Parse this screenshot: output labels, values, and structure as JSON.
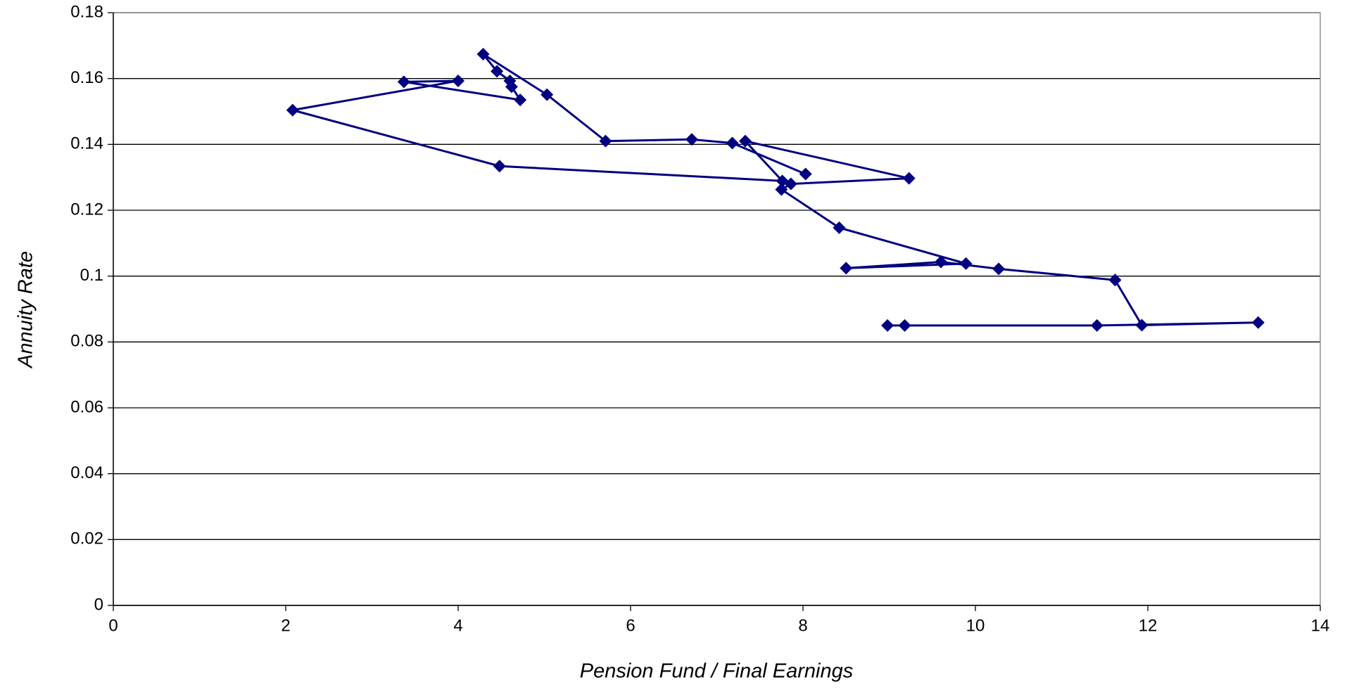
{
  "chart_data": {
    "type": "line",
    "x_label": "Pension Fund / Final Earnings",
    "y_label": "Annuity Rate",
    "x": [
      8.98,
      9.18,
      11.41,
      13.28,
      11.93,
      11.62,
      10.27,
      9.6,
      8.5,
      9.89,
      8.42,
      7.75,
      7.86,
      9.23,
      7.33,
      7.76,
      4.48,
      2.08,
      4.0,
      3.37,
      4.72,
      4.62,
      4.6,
      4.45,
      4.29,
      5.03,
      5.71,
      6.71,
      7.18,
      8.03
    ],
    "series": [
      {
        "color": "#000080",
        "values": [
          0.085,
          0.085,
          0.085,
          0.0859,
          0.0851,
          0.0988,
          0.1022,
          0.1043,
          0.1024,
          0.1038,
          0.1147,
          0.1263,
          0.128,
          0.1297,
          0.141,
          0.1289,
          0.1334,
          0.1504,
          0.1593,
          0.159,
          0.1535,
          0.1575,
          0.1593,
          0.1622,
          0.1674,
          0.1551,
          0.141,
          0.1415,
          0.1404,
          0.131
        ]
      }
    ],
    "xlim": [
      0,
      14
    ],
    "xticks": [
      0,
      2,
      4,
      6,
      8,
      10,
      12,
      14
    ],
    "ylim": [
      0,
      0.18
    ],
    "yticks": [
      0,
      0.02,
      0.04,
      0.06,
      0.08,
      0.1,
      0.12,
      0.14,
      0.16,
      0.18
    ],
    "grid": true
  }
}
